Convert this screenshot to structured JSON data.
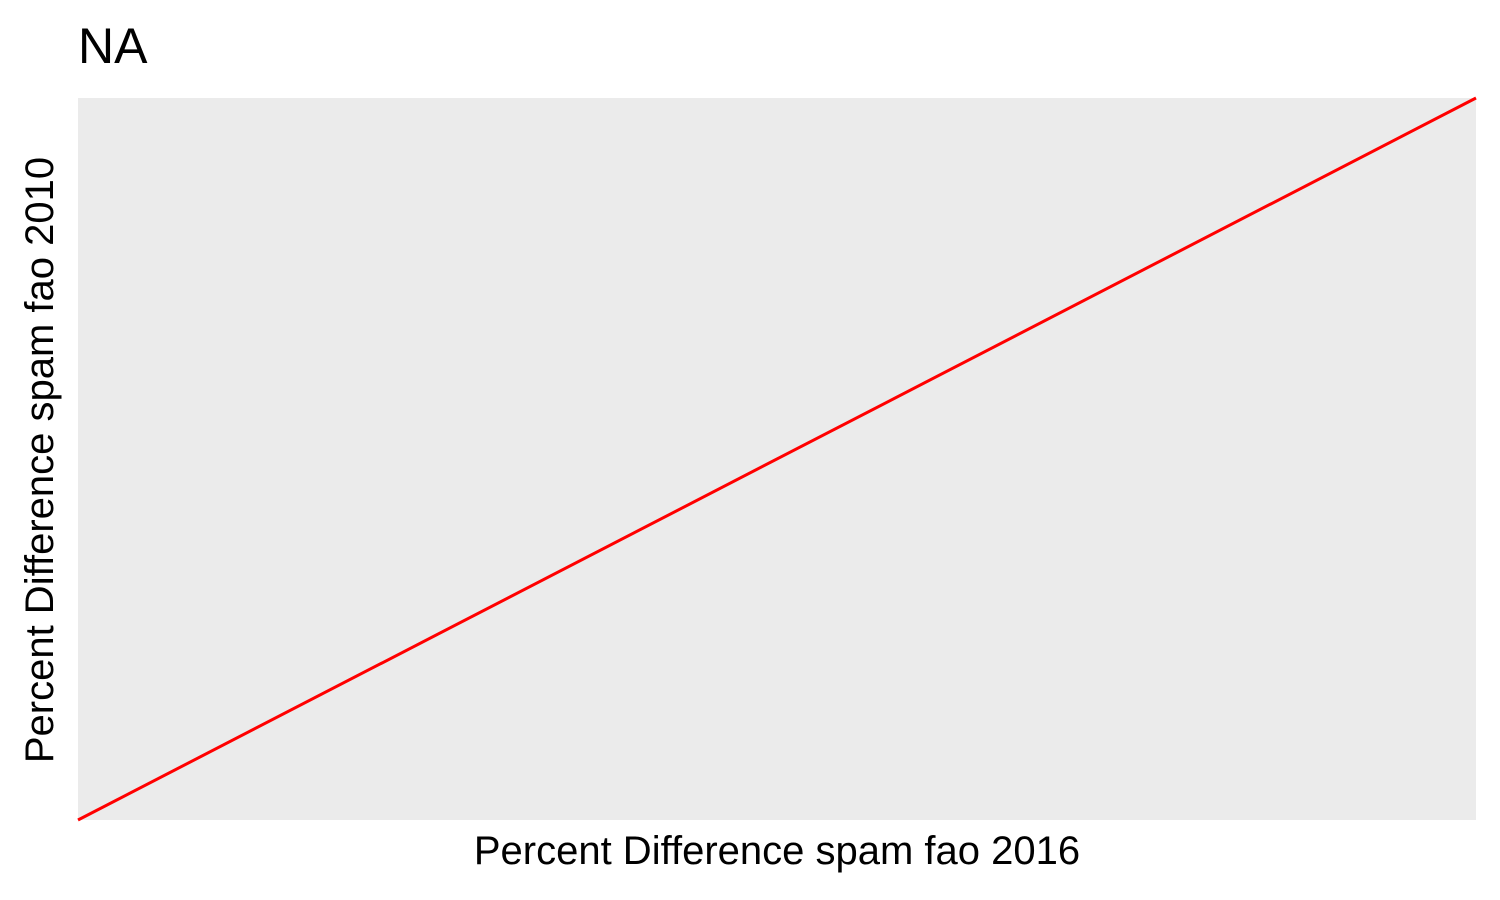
{
  "chart_data": {
    "type": "line",
    "title": "NA",
    "xlabel": "Percent Difference spam fao 2016",
    "ylabel": "Percent Difference spam fao 2010",
    "grid": false,
    "xlim": [
      0,
      1
    ],
    "ylim": [
      0,
      1
    ],
    "series": [
      {
        "x": [
          0,
          1
        ],
        "values": [
          0,
          1
        ],
        "color": "#ff0000"
      }
    ],
    "panel_background": "#ebebeb"
  }
}
